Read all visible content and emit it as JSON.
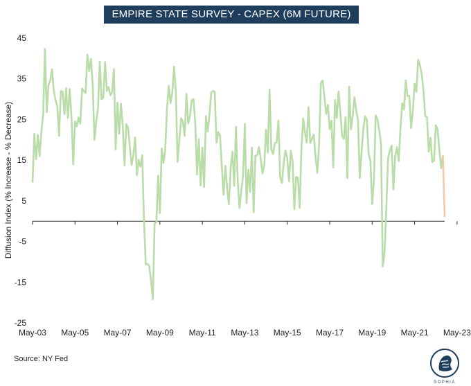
{
  "title": "EMPIRE STATE SURVEY - CAPEX (6M FUTURE)",
  "source": "Source: NY Fed",
  "logo_text": "SOPHIA",
  "chart_data": {
    "type": "line",
    "ylabel": "Diffusion Index (% Increase - % Decrease)",
    "xlabel": "",
    "ylim": [
      -25,
      45
    ],
    "yticks": [
      45,
      35,
      25,
      15,
      5,
      -5,
      -15,
      -25
    ],
    "x_tick_labels": [
      "May-03",
      "May-05",
      "May-07",
      "May-09",
      "May-11",
      "May-13",
      "May-15",
      "May-17",
      "May-19",
      "May-21",
      "May-23"
    ],
    "x_start": "2003-05",
    "x_end": "2023-06",
    "grid": false,
    "colors": {
      "main": "#b9dca8",
      "latest": "#f4c9a8",
      "axis": "#333333",
      "title_bg": "#1f3e5e"
    },
    "series": [
      {
        "values": [
          9.5,
          21.5,
          15.2,
          21.2,
          16.0,
          22.1,
          26.2,
          42.3,
          26.8,
          33.4,
          34.6,
          37.3,
          32.1,
          29.7,
          28.2,
          21.0,
          32.0,
          31.9,
          26.3,
          32.7,
          25.4,
          32.5,
          25.7,
          14.0,
          24.5,
          23.3,
          25.5,
          24.0,
          32.6,
          32.0,
          31.5,
          40.9,
          36.9,
          39.9,
          33.6,
          20.0,
          24.6,
          27.5,
          39.2,
          30.0,
          30.3,
          39.1,
          32.0,
          33.0,
          31.0,
          31.7,
          37.4,
          17.7,
          29.1,
          21.5,
          28.9,
          23.4,
          13.7,
          23.9,
          23.0,
          18.3,
          13.8,
          16.3,
          20.6,
          11.3,
          15.1,
          13.4,
          16.2,
          0.2,
          -10.6,
          -10.5,
          -11.0,
          -14.8,
          -19.2,
          -0.5,
          -0.2,
          11.2,
          2.0,
          17.9,
          14.3,
          17.5,
          27.7,
          33.3,
          29.0,
          31.5,
          38.0,
          31.7,
          14.6,
          20.0,
          25.3,
          24.4,
          21.0,
          31.3,
          24.0,
          25.9,
          29.8,
          30.0,
          24.0,
          11.5,
          20.2,
          8.8,
          18.1,
          8.4,
          25.8,
          22.0,
          26.1,
          31.6,
          32.0,
          31.8,
          19.3,
          21.9,
          21.0,
          13.5,
          6.5,
          13.6,
          8.1,
          4.2,
          13.1,
          17.1,
          8.7,
          23.2,
          10.0,
          3.2,
          7.5,
          11.0,
          23.9,
          4.5,
          12.7,
          7.2,
          18.1,
          2.2,
          16.1,
          16.2,
          18.2,
          15.4,
          11.7,
          13.7,
          22.5,
          16.9,
          32.4,
          17.7,
          16.5,
          19.2,
          19.4,
          24.7,
          10.8,
          9.4,
          14.5,
          17.4,
          15.5,
          9.8,
          17.4,
          14.8,
          2.9,
          10.9,
          10.7,
          3.3,
          17.7,
          25.3,
          21.8,
          19.3,
          28.0,
          19.2,
          20.3,
          21.3,
          15.7,
          11.9,
          18.7,
          33.9,
          34.6,
          30.6,
          26.4,
          28.6,
          22.6,
          24.7,
          13.2,
          29.8,
          25.4,
          31.9,
          26.8,
          21.0,
          20.2,
          25.6,
          10.6,
          33.1,
          22.6,
          25.9,
          30.5,
          27.2,
          24.8,
          10.6,
          16.9,
          22.6,
          25.8,
          24.9,
          16.6,
          14.9,
          4.2,
          10.1,
          26.0,
          25.0,
          22.4,
          18.9,
          -11.1,
          -7.7,
          3.0,
          15.6,
          17.3,
          18.6,
          7.8,
          15.9,
          18.2,
          14.8,
          22.8,
          29.0,
          27.4,
          34.6,
          30.7,
          30.8,
          22.9,
          27.0,
          33.8,
          31.8,
          39.7,
          38.4,
          36.2,
          32.2,
          25.8,
          25.6,
          17.1,
          20.5,
          14.5,
          14.9,
          23.6,
          22.5,
          17.6,
          13.0,
          16.2,
          1.0
        ]
      }
    ]
  }
}
